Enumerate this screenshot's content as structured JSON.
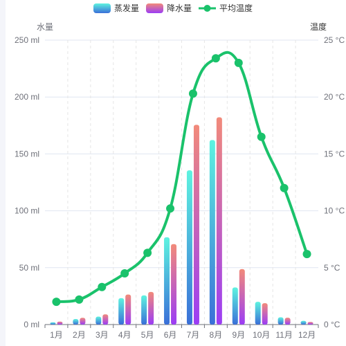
{
  "chart_data": {
    "type": "bar",
    "categories": [
      "1月",
      "2月",
      "3月",
      "4月",
      "5月",
      "6月",
      "7月",
      "8月",
      "9月",
      "10月",
      "11月",
      "12月"
    ],
    "series": [
      {
        "name": "蒸发量",
        "kind": "bar",
        "axis": "left",
        "values": [
          2.0,
          4.9,
          7.0,
          23.2,
          25.6,
          76.7,
          135.6,
          162.2,
          32.6,
          20.0,
          6.4,
          3.3
        ],
        "color_top": "#5ef3e0",
        "color_bottom": "#3a6fd8"
      },
      {
        "name": "降水量",
        "kind": "bar",
        "axis": "left",
        "values": [
          2.6,
          5.9,
          9.0,
          26.4,
          28.7,
          70.7,
          175.6,
          182.2,
          48.7,
          18.8,
          6.0,
          2.3
        ],
        "color_top": "#f28a7a",
        "color_bottom": "#9b3df5"
      },
      {
        "name": "平均温度",
        "kind": "line",
        "axis": "right",
        "values": [
          2.0,
          2.2,
          3.3,
          4.5,
          6.3,
          10.2,
          20.3,
          23.4,
          23.0,
          16.5,
          12.0,
          6.2
        ],
        "color": "#1ac26b"
      }
    ],
    "y_left": {
      "name": "水量",
      "min": 0,
      "max": 250,
      "interval": 50,
      "unit": " ml"
    },
    "y_right": {
      "name": "温度",
      "min": 0,
      "max": 25,
      "interval": 5,
      "unit": " °C"
    },
    "legend_position": "top",
    "grid": true
  }
}
